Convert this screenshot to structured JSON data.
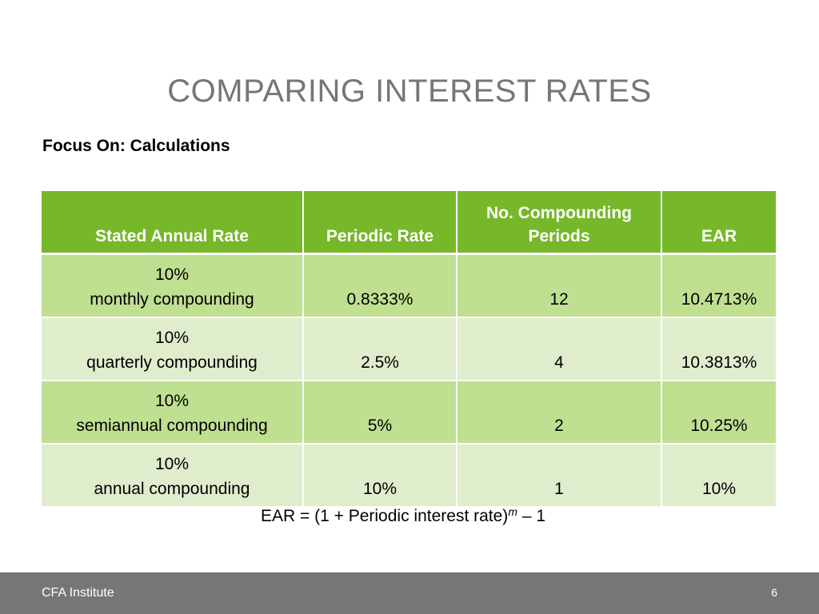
{
  "slide": {
    "title": "COMPARING INTEREST RATES",
    "subtitle": "Focus On: Calculations"
  },
  "table": {
    "headers": [
      "Stated Annual Rate",
      "Periodic Rate",
      "No. Compounding Periods",
      "EAR"
    ],
    "header_color": "#76b82a",
    "row_colors": [
      "#bfdf91",
      "#dfedcc"
    ],
    "rows": [
      {
        "rate": "10%",
        "method": "monthly compounding",
        "periodic": "0.8333%",
        "periods": "12",
        "ear": "10.4713%"
      },
      {
        "rate": "10%",
        "method": "quarterly compounding",
        "periodic": "2.5%",
        "periods": "4",
        "ear": "10.3813%"
      },
      {
        "rate": "10%",
        "method": "semiannual compounding",
        "periodic": "5%",
        "periods": "2",
        "ear": "10.25%"
      },
      {
        "rate": "10%",
        "method": "annual compounding",
        "periodic": "10%",
        "periods": "1",
        "ear": "10%"
      }
    ]
  },
  "formula": {
    "lhs": "EAR = (1 + Periodic interest rate)",
    "exponent": "m",
    "rhs": " – 1"
  },
  "footer": {
    "brand": "CFA Institute",
    "page_number": "6",
    "background": "#767676"
  }
}
